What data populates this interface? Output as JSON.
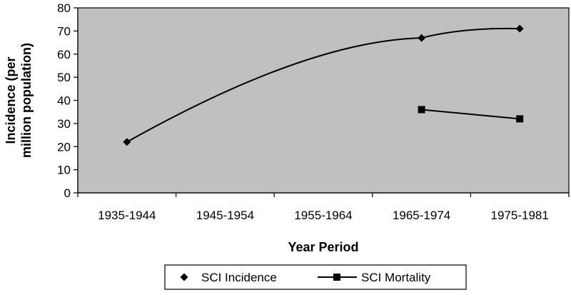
{
  "chart_data": {
    "type": "line",
    "categories": [
      "1935-1944",
      "1945-1954",
      "1955-1964",
      "1965-1974",
      "1975-1981"
    ],
    "series": [
      {
        "name": "SCI Incidence",
        "marker": "diamond",
        "values": [
          22,
          null,
          null,
          67,
          71
        ],
        "smooth": true
      },
      {
        "name": "SCI Mortality",
        "marker": "square",
        "values": [
          null,
          null,
          null,
          36,
          32
        ]
      }
    ],
    "xlabel": "Year Period",
    "ylabel_lines": [
      "Incidence (per",
      "million population)"
    ],
    "ylim": [
      0,
      80
    ],
    "yticks": [
      "0",
      "10",
      "20",
      "30",
      "40",
      "50",
      "60",
      "70",
      "80"
    ],
    "grid": false,
    "legend_position": "bottom",
    "colors": {
      "plot_background": "#c0c0c0",
      "series": "#000000",
      "axis": "#000000"
    }
  }
}
